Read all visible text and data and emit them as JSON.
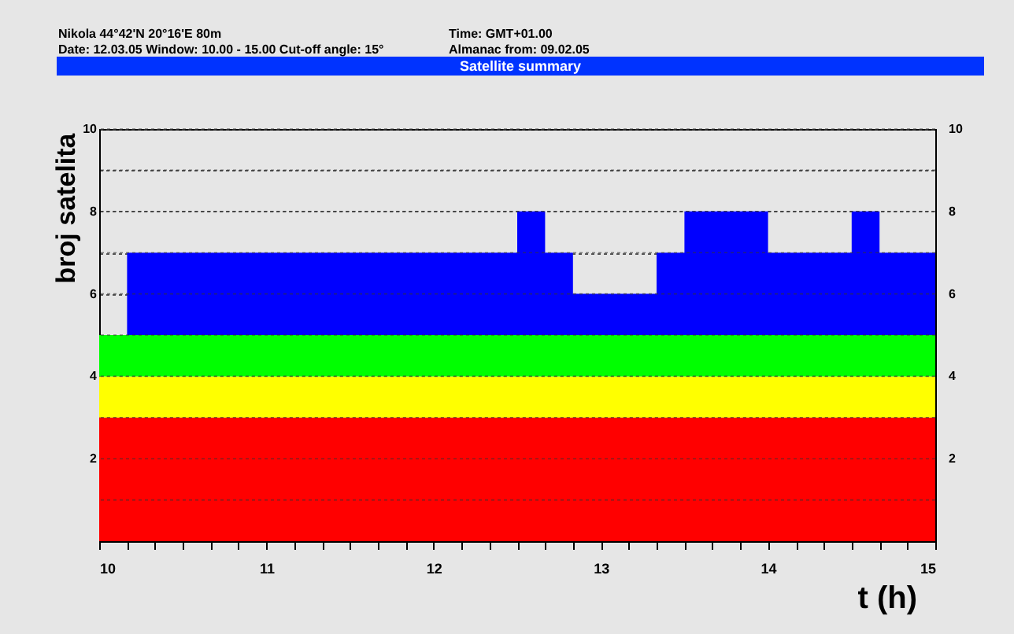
{
  "chart_data": {
    "type": "area",
    "stacked": true,
    "title": "Satellite summary",
    "annotations": [
      "Nikola   44°42'N   20°16'E      80m",
      "Time: GMT+01.00",
      "Date: 12.03.05  Window: 10.00 - 15.00  Cut-off angle: 15°",
      "Almanac from: 09.02.05"
    ],
    "xlabel": "t (h)",
    "ylabel": "broj satelita",
    "series": [
      {
        "color": "#ff0000",
        "values": [
          3,
          3,
          3,
          3,
          3,
          3,
          3,
          3,
          3,
          3,
          3,
          3,
          3,
          3,
          3,
          3,
          3,
          3,
          3,
          3
        ]
      },
      {
        "color": "#ffff00",
        "values": [
          1,
          1,
          1,
          1,
          1,
          1,
          1,
          1,
          1,
          1,
          1,
          1,
          1,
          1,
          1,
          1,
          1,
          1,
          1,
          1
        ]
      },
      {
        "color": "#00ff00",
        "values": [
          1,
          1,
          1,
          1,
          1,
          1,
          1,
          1,
          1,
          1,
          1,
          1,
          1,
          1,
          1,
          1,
          1,
          1,
          1,
          1
        ]
      },
      {
        "color": "#0000ff",
        "values": [
          0,
          0,
          2,
          2,
          3,
          3,
          2,
          2,
          1,
          1,
          2,
          2,
          3,
          3,
          2,
          2,
          3,
          3,
          2,
          2
        ]
      }
    ],
    "x": [
      10,
      10.1667,
      10.1667,
      12.5,
      12.5,
      12.6667,
      12.6667,
      12.8333,
      12.8333,
      13.3333,
      13.3333,
      13.5,
      13.5,
      14,
      14,
      14.5,
      14.5,
      14.6667,
      14.6667,
      15
    ],
    "xlim": [
      10,
      15
    ],
    "xticks": [
      10,
      {
        "value": 10.1667,
        "label": null
      },
      {
        "value": 10.3333,
        "label": null
      },
      {
        "value": 10.5,
        "label": null
      },
      {
        "value": 10.6667,
        "label": null
      },
      {
        "value": 10.8333,
        "label": null
      },
      11,
      {
        "value": 11.1667,
        "label": null
      },
      {
        "value": 11.3333,
        "label": null
      },
      {
        "value": 11.5,
        "label": null
      },
      {
        "value": 11.6667,
        "label": null
      },
      {
        "value": 11.8333,
        "label": null
      },
      12,
      {
        "value": 12.1667,
        "label": null
      },
      {
        "value": 12.3333,
        "label": null
      },
      {
        "value": 12.5,
        "label": null
      },
      {
        "value": 12.6667,
        "label": null
      },
      {
        "value": 12.8333,
        "label": null
      },
      13,
      {
        "value": 13.1667,
        "label": null
      },
      {
        "value": 13.3333,
        "label": null
      },
      {
        "value": 13.5,
        "label": null
      },
      {
        "value": 13.6667,
        "label": null
      },
      {
        "value": 13.8333,
        "label": null
      },
      14,
      {
        "value": 14.1667,
        "label": null
      },
      {
        "value": 14.3333,
        "label": null
      },
      {
        "value": 14.5,
        "label": null
      },
      {
        "value": 14.6667,
        "label": null
      },
      {
        "value": 14.8333,
        "label": null
      },
      15
    ],
    "ylim": [
      0,
      10
    ],
    "yticks": [
      {
        "value": 1,
        "label": null
      },
      2,
      {
        "value": 3,
        "label": null
      },
      4,
      {
        "value": 5,
        "label": null
      },
      6,
      {
        "value": 7,
        "label": null
      },
      8,
      {
        "value": 9,
        "label": null
      },
      10
    ],
    "y2lim": [
      0,
      10
    ],
    "y2ticks": [
      2,
      4,
      6,
      8,
      10
    ],
    "grid": "y",
    "line_style": "dotted"
  }
}
